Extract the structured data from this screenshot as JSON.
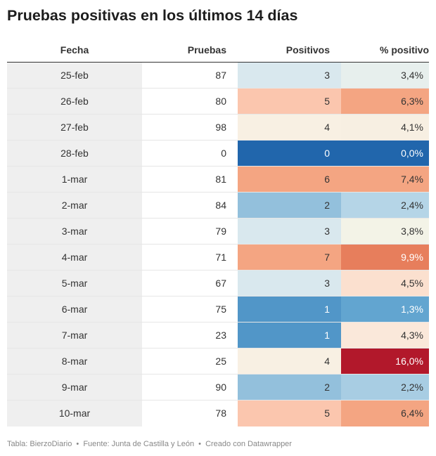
{
  "chart_data": {
    "type": "table",
    "title": "Pruebas positivas en los últimos 14 días",
    "columns": [
      "Fecha",
      "Pruebas",
      "Positivos",
      "% positivo"
    ],
    "rows": [
      {
        "fecha": "25-feb",
        "pruebas": 87,
        "positivos": 3,
        "pct": "3,4%"
      },
      {
        "fecha": "26-feb",
        "pruebas": 80,
        "positivos": 5,
        "pct": "6,3%"
      },
      {
        "fecha": "27-feb",
        "pruebas": 98,
        "positivos": 4,
        "pct": "4,1%"
      },
      {
        "fecha": "28-feb",
        "pruebas": 0,
        "positivos": 0,
        "pct": "0,0%"
      },
      {
        "fecha": "1-mar",
        "pruebas": 81,
        "positivos": 6,
        "pct": "7,4%"
      },
      {
        "fecha": "2-mar",
        "pruebas": 84,
        "positivos": 2,
        "pct": "2,4%"
      },
      {
        "fecha": "3-mar",
        "pruebas": 79,
        "positivos": 3,
        "pct": "3,8%"
      },
      {
        "fecha": "4-mar",
        "pruebas": 71,
        "positivos": 7,
        "pct": "9,9%"
      },
      {
        "fecha": "5-mar",
        "pruebas": 67,
        "positivos": 3,
        "pct": "4,5%"
      },
      {
        "fecha": "6-mar",
        "pruebas": 75,
        "positivos": 1,
        "pct": "1,3%"
      },
      {
        "fecha": "7-mar",
        "pruebas": 23,
        "positivos": 1,
        "pct": "4,3%"
      },
      {
        "fecha": "8-mar",
        "pruebas": 25,
        "positivos": 4,
        "pct": "16,0%"
      },
      {
        "fecha": "9-mar",
        "pruebas": 90,
        "positivos": 2,
        "pct": "2,2%"
      },
      {
        "fecha": "10-mar",
        "pruebas": 78,
        "positivos": 5,
        "pct": "6,4%"
      }
    ]
  },
  "cell_colors": {
    "positivos": [
      "#d9e8ee",
      "#fbc6ae",
      "#f8f0e3",
      "#2166ac",
      "#f4a582",
      "#93c0dc",
      "#d9e8ee",
      "#f4a582",
      "#d9e8ee",
      "#5196c8",
      "#5196c8",
      "#f8f0e3",
      "#93c0dc",
      "#fbc6ae"
    ],
    "pct": [
      "#e7efed",
      "#f4a582",
      "#f7efe2",
      "#2166ac",
      "#f4a582",
      "#b5d5e7",
      "#f3f3e7",
      "#e77e5c",
      "#fbe0cf",
      "#62a5d0",
      "#fae8da",
      "#b2182b",
      "#a8cde3",
      "#f4a582"
    ],
    "light_text": [
      "#ffffff"
    ]
  },
  "footer": {
    "table": "Tabla: BierzoDiario",
    "source": "Fuente: Junta de Castilla y León",
    "created": "Creado con Datawrapper",
    "separator": "•"
  }
}
